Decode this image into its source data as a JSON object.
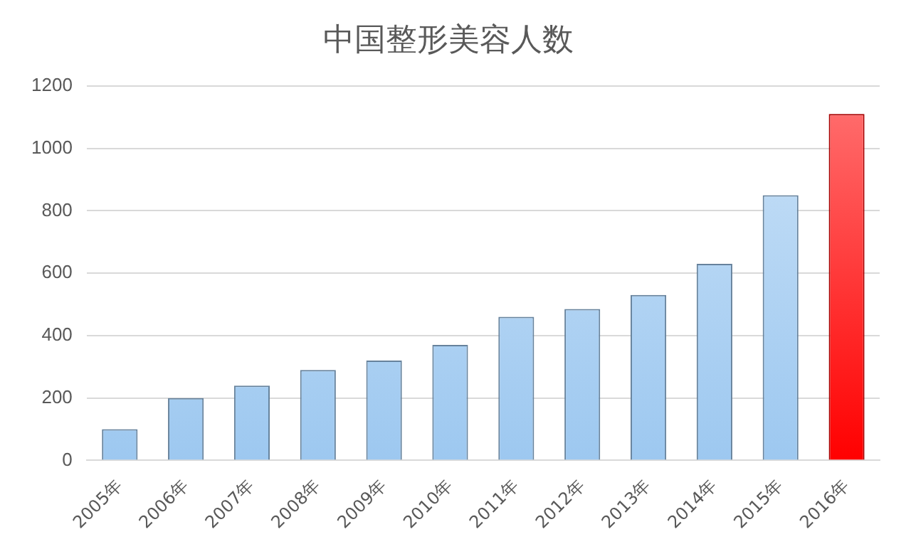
{
  "chart_data": {
    "type": "bar",
    "title": "中国整形美容人数",
    "categories": [
      "2005年",
      "2006年",
      "2007年",
      "2008年",
      "2009年",
      "2010年",
      "2011年",
      "2012年",
      "2013年",
      "2014年",
      "2015年",
      "2016年"
    ],
    "values": [
      100,
      200,
      240,
      290,
      320,
      370,
      460,
      485,
      530,
      630,
      850,
      1110
    ],
    "colors": [
      "#9dc8f0",
      "#9dc8f0",
      "#9dc8f0",
      "#9dc8f0",
      "#9dc8f0",
      "#9dc8f0",
      "#9dc8f0",
      "#9dc8f0",
      "#9dc8f0",
      "#9dc8f0",
      "#9dc8f0",
      "#ff0000"
    ],
    "ylim": [
      0,
      1200
    ],
    "yticks": [
      0,
      200,
      400,
      600,
      800,
      1000,
      1200
    ],
    "grid": "y",
    "legend": false
  }
}
